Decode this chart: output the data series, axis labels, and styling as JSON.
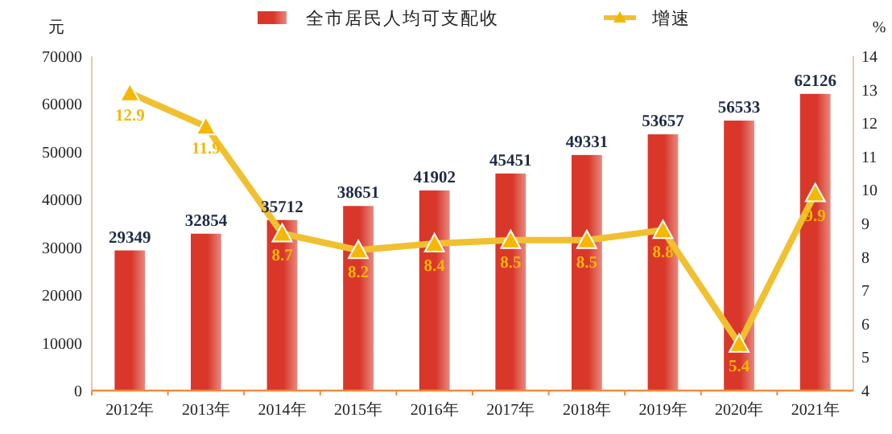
{
  "chart_data": {
    "type": "bar",
    "categories": [
      "2012年",
      "2013年",
      "2014年",
      "2015年",
      "2016年",
      "2017年",
      "2018年",
      "2019年",
      "2020年",
      "2021年"
    ],
    "series": [
      {
        "name": "全市居民人均可支配收",
        "color": "#d9372a",
        "values": [
          29349,
          32854,
          35712,
          38651,
          41902,
          45451,
          49331,
          53657,
          56533,
          62126
        ]
      },
      {
        "name": "增速",
        "type": "line",
        "axis": "y2",
        "color": "#f0c030",
        "marker": "triangle",
        "values": [
          12.9,
          11.9,
          8.7,
          8.2,
          8.4,
          8.5,
          8.5,
          8.8,
          5.4,
          9.9
        ]
      }
    ],
    "ylabel": "元",
    "y2label": "%",
    "ylim": [
      0,
      70000
    ],
    "yticks": [
      0,
      10000,
      20000,
      30000,
      40000,
      50000,
      60000,
      70000
    ],
    "y2lim": [
      4,
      14
    ],
    "y2ticks": [
      4,
      5,
      6,
      7,
      8,
      9,
      10,
      11,
      12,
      13,
      14
    ],
    "data_labels": true,
    "legend": "top",
    "grid": false
  }
}
